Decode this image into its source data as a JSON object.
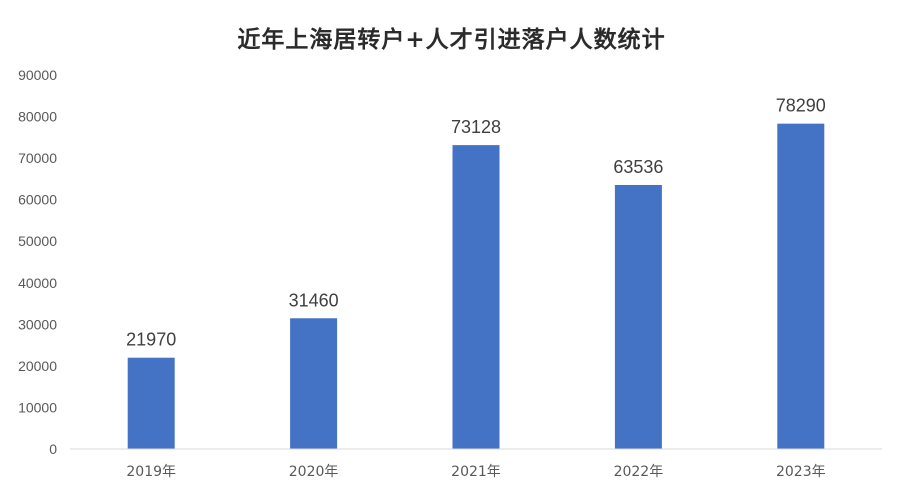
{
  "chart_data": {
    "type": "bar",
    "title": "近年上海居转户+人才引进落户人数统计",
    "categories": [
      "2019年",
      "2020年",
      "2021年",
      "2022年",
      "2023年"
    ],
    "values": [
      21970,
      31460,
      73128,
      63536,
      78290
    ],
    "ylim": [
      0,
      90000
    ],
    "yticks": [
      0,
      10000,
      20000,
      30000,
      40000,
      50000,
      60000,
      70000,
      80000,
      90000
    ],
    "grid": false,
    "legend": "none",
    "bar_color": "#4472C4",
    "xlabel": "",
    "ylabel": ""
  }
}
